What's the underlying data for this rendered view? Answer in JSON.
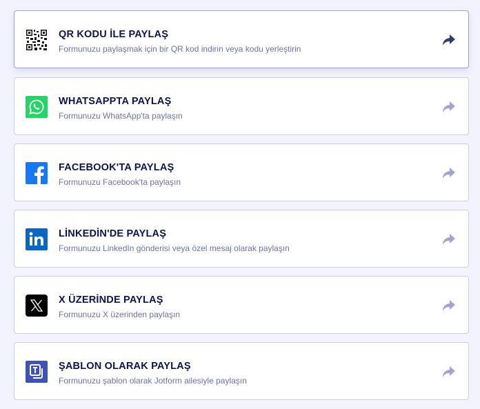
{
  "items": [
    {
      "id": "qr",
      "title": "QR KODU İLE PAYLAŞ",
      "subtitle": "Formunuzu paylaşmak için bir QR kod indirin veya kodu yerleştirin",
      "icon": "qr-code-icon",
      "color": "#000000"
    },
    {
      "id": "whatsapp",
      "title": "WHATSAPPTA PAYLAŞ",
      "subtitle": "Formunuzu WhatsApp'ta paylaşın",
      "icon": "whatsapp-icon",
      "color": "#25d366"
    },
    {
      "id": "facebook",
      "title": "FACEBOOK'TA PAYLAŞ",
      "subtitle": "Formunuzu Facebook'ta paylaşın",
      "icon": "facebook-icon",
      "color": "#1877f2"
    },
    {
      "id": "linkedin",
      "title": "LİNKEDİN'DE PAYLAŞ",
      "subtitle": "Formunuzu LinkedIn gönderisi veya özel mesaj olarak paylaşın",
      "icon": "linkedin-icon",
      "color": "#0a66c2"
    },
    {
      "id": "x",
      "title": "X ÜZERİNDE PAYLAŞ",
      "subtitle": "Formunuzu X üzerinden paylaşın",
      "icon": "x-icon",
      "color": "#000000"
    },
    {
      "id": "template",
      "title": "ŞABLON OLARAK PAYLAŞ",
      "subtitle": "Formunuzu şablon olarak Jotform ailesiyle paylaşın",
      "icon": "template-icon",
      "color": "#3e52b8"
    }
  ],
  "active_item": "qr"
}
